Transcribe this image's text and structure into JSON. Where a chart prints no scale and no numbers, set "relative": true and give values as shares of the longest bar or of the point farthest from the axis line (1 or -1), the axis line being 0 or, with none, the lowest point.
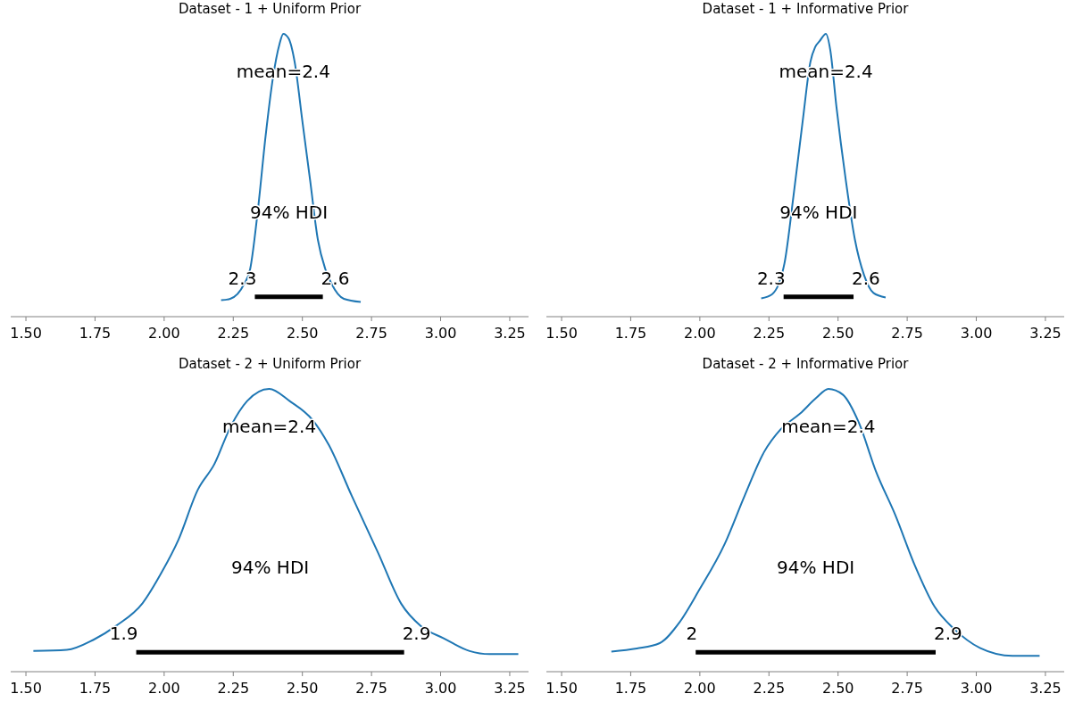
{
  "chart_data": [
    {
      "type": "line",
      "title": "Dataset - 1 + Uniform Prior",
      "relative": true,
      "tick_labels": "x",
      "xlim": [
        1.445,
        3.318
      ],
      "xticks": [
        {
          "value": 1.5,
          "label": "1.50"
        },
        1.75,
        {
          "value": 2,
          "label": "2.00"
        },
        2.25,
        {
          "value": 2.5,
          "label": "2.50"
        },
        2.75,
        {
          "value": 3,
          "label": "3.00"
        },
        3.25
      ],
      "series": [
        {
          "color": "#1f77b4",
          "x": [
            2.206,
            2.239,
            2.289,
            2.311,
            2.339,
            2.367,
            2.394,
            2.417,
            2.431,
            2.45,
            2.472,
            2.5,
            2.528,
            2.556,
            2.583,
            2.606,
            2.65,
            2.711
          ],
          "values": [
            0.058,
            0.063,
            0.115,
            0.168,
            0.377,
            0.639,
            0.848,
            0.963,
            1,
            0.984,
            0.901,
            0.691,
            0.482,
            0.272,
            0.168,
            0.115,
            0.063,
            0.052
          ]
        },
        {
          "color": "#000000",
          "x": [
            2.328,
            2.574
          ],
          "values": [
            0.07,
            0.07
          ]
        }
      ],
      "annotations": [
        "mean=2.4",
        "94% HDI",
        "2.3",
        "2.6"
      ]
    },
    {
      "type": "line",
      "title": "Dataset - 1 + Informative Prior",
      "relative": true,
      "tick_labels": "x",
      "xlim": [
        1.445,
        3.318
      ],
      "xticks": [
        {
          "value": 1.5,
          "label": "1.50"
        },
        1.75,
        {
          "value": 2,
          "label": "2.00"
        },
        2.25,
        {
          "value": 2.5,
          "label": "2.50"
        },
        2.75,
        {
          "value": 3,
          "label": "3.00"
        },
        3.25
      ],
      "series": [
        {
          "color": "#1f77b4",
          "x": [
            2.222,
            2.261,
            2.306,
            2.339,
            2.372,
            2.4,
            2.417,
            2.433,
            2.456,
            2.472,
            2.494,
            2.528,
            2.561,
            2.594,
            2.628,
            2.672
          ],
          "values": [
            0.065,
            0.079,
            0.188,
            0.429,
            0.691,
            0.901,
            0.953,
            0.974,
            1,
            0.942,
            0.743,
            0.482,
            0.272,
            0.147,
            0.084,
            0.068
          ]
        },
        {
          "color": "#000000",
          "x": [
            2.303,
            2.556
          ],
          "values": [
            0.07,
            0.07
          ]
        }
      ],
      "annotations": [
        "mean=2.4",
        "94% HDI",
        "2.3",
        "2.6"
      ]
    },
    {
      "type": "line",
      "title": "Dataset - 2 + Uniform Prior",
      "relative": true,
      "tick_labels": "x",
      "xlim": [
        1.445,
        3.318
      ],
      "xticks": [
        {
          "value": 1.5,
          "label": "1.50"
        },
        1.75,
        {
          "value": 2,
          "label": "2.00"
        },
        2.25,
        {
          "value": 2.5,
          "label": "2.50"
        },
        2.75,
        {
          "value": 3,
          "label": "3.00"
        },
        3.25
      ],
      "series": [
        {
          "color": "#1f77b4",
          "x": [
            1.527,
            1.648,
            1.743,
            1.826,
            1.921,
            1.992,
            2.051,
            2.122,
            2.181,
            2.241,
            2.3,
            2.38,
            2.454,
            2.537,
            2.596,
            2.679,
            2.774,
            2.857,
            2.928,
            3.011,
            3.105,
            3.177,
            3.281
          ],
          "values": [
            0.073,
            0.077,
            0.112,
            0.162,
            0.241,
            0.353,
            0.465,
            0.644,
            0.733,
            0.868,
            0.957,
            1,
            0.957,
            0.89,
            0.801,
            0.621,
            0.42,
            0.241,
            0.162,
            0.118,
            0.073,
            0.062,
            0.062
          ]
        },
        {
          "color": "#000000",
          "x": [
            1.899,
            2.868
          ],
          "values": [
            0.069,
            0.069
          ]
        }
      ],
      "annotations": [
        "mean=2.4",
        "94% HDI",
        "1.9",
        "2.9"
      ]
    },
    {
      "type": "line",
      "title": "Dataset - 2 + Informative Prior",
      "relative": true,
      "tick_labels": "x",
      "xlim": [
        1.445,
        3.318
      ],
      "xticks": [
        {
          "value": 1.5,
          "label": "1.50"
        },
        1.75,
        {
          "value": 2,
          "label": "2.00"
        },
        2.25,
        {
          "value": 2.5,
          "label": "2.50"
        },
        2.75,
        {
          "value": 3,
          "label": "3.00"
        },
        3.25
      ],
      "series": [
        {
          "color": "#1f77b4",
          "x": [
            1.68,
            1.772,
            1.855,
            1.926,
            1.996,
            2.091,
            2.162,
            2.233,
            2.292,
            2.363,
            2.422,
            2.465,
            2.517,
            2.576,
            2.636,
            2.707,
            2.778,
            2.849,
            2.92,
            3.013,
            3.131,
            3.229
          ],
          "values": [
            0.071,
            0.082,
            0.101,
            0.174,
            0.286,
            0.454,
            0.622,
            0.778,
            0.857,
            0.913,
            0.969,
            1,
            0.98,
            0.879,
            0.711,
            0.554,
            0.375,
            0.23,
            0.151,
            0.084,
            0.056,
            0.056
          ]
        },
        {
          "color": "#000000",
          "x": [
            1.985,
            2.853
          ],
          "values": [
            0.069,
            0.069
          ]
        }
      ],
      "annotations": [
        "mean=2.4",
        "94% HDI",
        "2",
        "2.9"
      ]
    }
  ]
}
